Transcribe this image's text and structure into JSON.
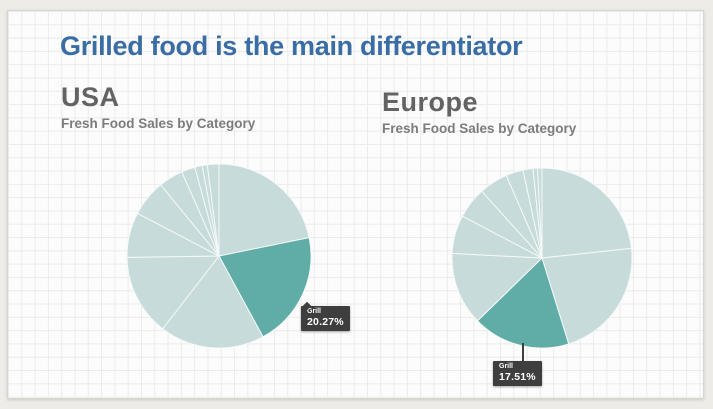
{
  "title": {
    "text": "Grilled food is the main differentiator",
    "color": "#3a6da3"
  },
  "tooltip_style": {
    "background": "#3e3e3e",
    "text_color": "#ffffff"
  },
  "chart_data": [
    {
      "id": "usa",
      "type": "pie",
      "title": "USA",
      "subtitle": "Fresh Food Sales by Category",
      "legend_position": "none",
      "start_angle_deg": 0,
      "slices_pct": [
        21.8,
        20.27,
        18.4,
        14.3,
        7.9,
        6.4,
        4.3,
        2.4,
        1.3,
        0.9,
        2.03
      ],
      "highlight_index": 1,
      "highlight": {
        "label": "Grill",
        "value_pct": 20.27,
        "value_text": "20.27%"
      },
      "colors": {
        "default": "#c6dbda",
        "highlight": "#5fada6",
        "stroke": "#f5f9f8"
      }
    },
    {
      "id": "europe",
      "type": "pie",
      "title": "Europe",
      "subtitle": "Fresh Food Sales by Category",
      "legend_position": "none",
      "start_angle_deg": 0,
      "slices_pct": [
        23.3,
        21.9,
        17.51,
        13.1,
        6.9,
        5.6,
        5.2,
        3.1,
        1.8,
        0.8,
        0.79
      ],
      "highlight_index": 2,
      "highlight": {
        "label": "Grill",
        "value_pct": 17.51,
        "value_text": "17.51%"
      },
      "colors": {
        "default": "#c6dbda",
        "highlight": "#5fada6",
        "stroke": "#f5f9f8"
      }
    }
  ]
}
